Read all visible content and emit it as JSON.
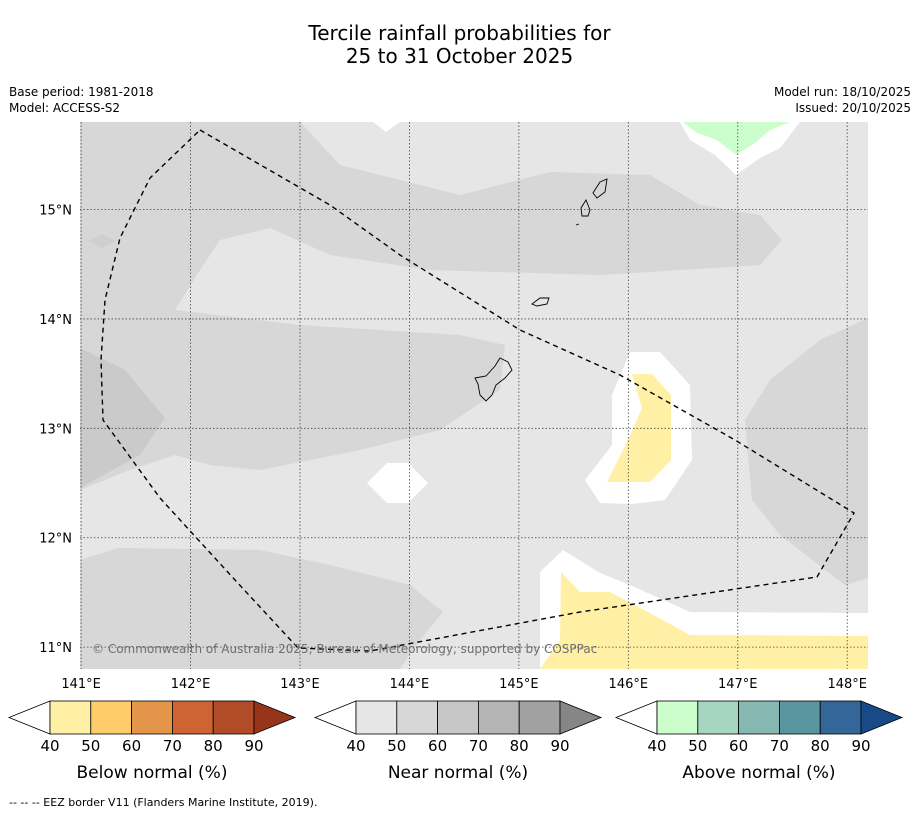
{
  "title": {
    "line1": "Tercile rainfall probabilities for",
    "line2": "25 to 31 October 2025"
  },
  "meta": {
    "base_period": "Base period: 1981-2018",
    "model": "Model: ACCESS-S2",
    "model_run": "Model run: 18/10/2025",
    "issued": "Issued: 20/10/2025"
  },
  "map": {
    "lon_range": [
      140.99,
      148.19
    ],
    "lat_range": [
      10.8,
      15.8
    ],
    "lon_ticks": [
      141,
      142,
      143,
      144,
      145,
      146,
      147,
      148
    ],
    "lat_ticks": [
      11,
      12,
      13,
      14,
      15
    ],
    "lon_labels": [
      "141°E",
      "142°E",
      "143°E",
      "144°E",
      "145°E",
      "146°E",
      "147°E",
      "148°E"
    ],
    "lat_labels": [
      "11°N",
      "12°N",
      "13°N",
      "14°N",
      "15°N"
    ],
    "background_color": "#e6e6e6",
    "copyright": "© Commonwealth of Australia 2025, Bureau of Meteorology, supported by COSPPac"
  },
  "legends": [
    {
      "label": "Below normal (%)",
      "ticks": [
        "40",
        "50",
        "60",
        "70",
        "80",
        "90"
      ],
      "colors": [
        "#ffffff",
        "#fff0a6",
        "#fecd6a",
        "#e39549",
        "#cd6432",
        "#b24b27",
        "#97341c"
      ]
    },
    {
      "label": "Near normal (%)",
      "ticks": [
        "40",
        "50",
        "60",
        "70",
        "80",
        "90"
      ],
      "colors": [
        "#ffffff",
        "#e6e6e6",
        "#d7d7d7",
        "#c7c7c7",
        "#b4b4b4",
        "#a1a1a1",
        "#868686"
      ]
    },
    {
      "label": "Above normal (%)",
      "ticks": [
        "40",
        "50",
        "60",
        "70",
        "80",
        "90"
      ],
      "colors": [
        "#ffffff",
        "#ccfecc",
        "#a5d6bf",
        "#84b8b0",
        "#5a96a0",
        "#336799",
        "#194a88"
      ]
    }
  ],
  "footnote": "--  --  -- EEZ border V11 (Flanders Marine Institute, 2019)."
}
